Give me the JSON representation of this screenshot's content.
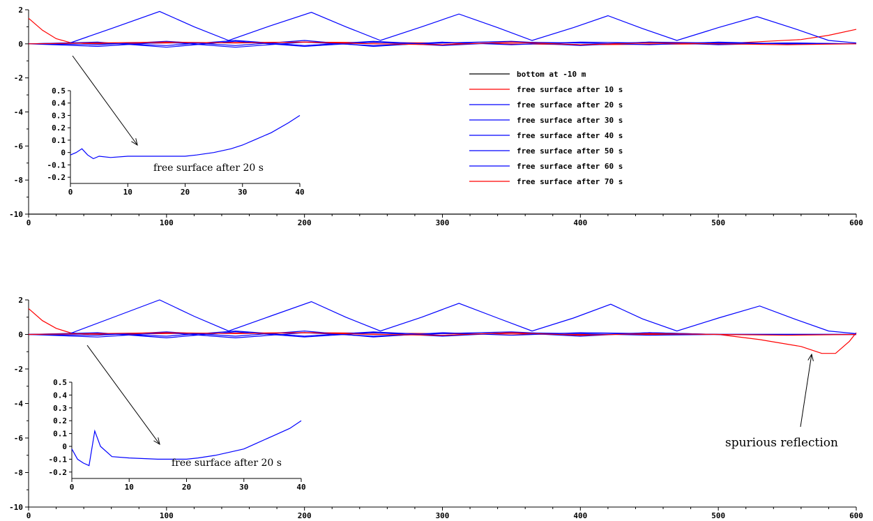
{
  "chart_data": [
    {
      "type": "line",
      "title": "",
      "xlabel": "",
      "ylabel": "",
      "xlim": [
        0,
        600
      ],
      "ylim": [
        -10,
        2
      ],
      "xticks": [
        "0",
        "100",
        "200",
        "300",
        "400",
        "500",
        "600"
      ],
      "yticks": [
        "2",
        "0",
        "-2",
        "-4",
        "-6",
        "-8",
        "-10"
      ],
      "legend_position": "right-middle",
      "series": [
        {
          "name": "bottom at -10 m",
          "color": "#000000",
          "x": [
            0,
            600
          ],
          "y": [
            -10,
            -10
          ]
        },
        {
          "name": "free surface after 10 s",
          "color": "#ff0000",
          "x": [
            0,
            10,
            20,
            30,
            40,
            60,
            100,
            200,
            300,
            400,
            500,
            560,
            580,
            600
          ],
          "y": [
            1.5,
            0.8,
            0.3,
            0.08,
            0.02,
            0.0,
            0.05,
            0.1,
            0.05,
            -0.05,
            0.0,
            0.25,
            0.5,
            0.85
          ]
        },
        {
          "name": "free surface after 20 s",
          "color": "#0000ff",
          "x": [
            0,
            30,
            60,
            95,
            120,
            145,
            175,
            205,
            230,
            255,
            285,
            312,
            340,
            365,
            395,
            420,
            445,
            470,
            500,
            528,
            555,
            580,
            600
          ],
          "y": [
            0,
            0.05,
            0.9,
            1.9,
            1.0,
            0.2,
            1.05,
            1.85,
            1.0,
            0.2,
            1.0,
            1.75,
            0.95,
            0.2,
            0.95,
            1.65,
            0.9,
            0.2,
            0.95,
            1.6,
            0.9,
            0.2,
            0.05
          ]
        },
        {
          "name": "free surface after 30 s",
          "color": "#0000ff",
          "x": [
            0,
            50,
            100,
            150,
            200,
            250,
            300,
            350,
            400,
            450,
            500,
            550,
            600
          ],
          "y": [
            0,
            -0.15,
            0.1,
            -0.2,
            0.1,
            -0.1,
            0.05,
            0.15,
            -0.05,
            0.1,
            -0.05,
            0.05,
            0
          ]
        },
        {
          "name": "free surface after 40 s",
          "color": "#0000ff",
          "x": [
            0,
            50,
            100,
            150,
            200,
            250,
            300,
            350,
            400,
            450,
            500,
            550,
            600
          ],
          "y": [
            0,
            0.1,
            -0.2,
            0.15,
            -0.15,
            0.1,
            -0.1,
            0.1,
            0.05,
            -0.05,
            0.1,
            0,
            0
          ]
        },
        {
          "name": "free surface after 50 s",
          "color": "#0000ff",
          "x": [
            0,
            50,
            100,
            150,
            200,
            250,
            300,
            350,
            400,
            450,
            500,
            550,
            600
          ],
          "y": [
            0,
            -0.05,
            0.15,
            -0.1,
            0.2,
            -0.15,
            0.1,
            -0.05,
            0.1,
            0.05,
            0,
            0.05,
            0
          ]
        },
        {
          "name": "free surface after 60 s",
          "color": "#0000ff",
          "x": [
            0,
            50,
            100,
            150,
            200,
            250,
            300,
            350,
            400,
            450,
            500,
            550,
            600
          ],
          "y": [
            0,
            0.05,
            -0.1,
            0.2,
            -0.1,
            0.15,
            -0.05,
            0.1,
            -0.1,
            0.1,
            0.05,
            0,
            0
          ]
        },
        {
          "name": "free surface after 70 s",
          "color": "#ff0000",
          "x": [
            0,
            50,
            100,
            150,
            200,
            250,
            300,
            350,
            400,
            450,
            500,
            550,
            600
          ],
          "y": [
            0,
            0.05,
            0.1,
            0.05,
            0.1,
            0.0,
            -0.05,
            0.1,
            -0.05,
            0.05,
            0,
            -0.05,
            0
          ]
        }
      ],
      "inset": {
        "type": "line",
        "xlim": [
          0,
          40
        ],
        "ylim": [
          -0.25,
          0.5
        ],
        "xticks": [
          "0",
          "10",
          "20",
          "30",
          "40"
        ],
        "yticks": [
          "0.5",
          "0.4",
          "0.3",
          "0.2",
          "0.1",
          "0",
          "-0.1",
          "-0.2"
        ],
        "annotation": "free surface after 20 s",
        "series": [
          {
            "color": "#0000ff",
            "x": [
              0,
              1,
              2,
              3,
              4,
              5,
              7,
              10,
              15,
              20,
              22,
              25,
              28,
              30,
              32,
              35,
              38,
              40
            ],
            "y": [
              -0.02,
              0.0,
              0.03,
              -0.02,
              -0.05,
              -0.03,
              -0.04,
              -0.03,
              -0.03,
              -0.03,
              -0.02,
              0.0,
              0.03,
              0.06,
              0.1,
              0.16,
              0.24,
              0.3
            ]
          }
        ]
      }
    },
    {
      "type": "line",
      "title": "",
      "xlabel": "",
      "ylabel": "",
      "xlim": [
        0,
        600
      ],
      "ylim": [
        -10,
        2
      ],
      "xticks": [
        "0",
        "100",
        "200",
        "300",
        "400",
        "500",
        "600"
      ],
      "yticks": [
        "2",
        "0",
        "-2",
        "-4",
        "-6",
        "-8",
        "-10"
      ],
      "series": [
        {
          "name": "free surface after 10 s",
          "color": "#ff0000",
          "x": [
            0,
            10,
            20,
            30,
            40,
            60,
            100,
            200,
            300,
            400,
            500,
            530,
            560,
            575,
            585,
            595,
            600
          ],
          "y": [
            1.5,
            0.8,
            0.35,
            0.1,
            0.02,
            0.0,
            0.05,
            0.1,
            0.05,
            0.0,
            0.0,
            -0.3,
            -0.7,
            -1.1,
            -1.1,
            -0.4,
            0.1
          ]
        },
        {
          "name": "free surface after 20 s",
          "color": "#0000ff",
          "x": [
            0,
            30,
            60,
            95,
            120,
            145,
            175,
            205,
            230,
            255,
            285,
            312,
            340,
            365,
            395,
            422,
            445,
            470,
            500,
            530,
            555,
            580,
            600
          ],
          "y": [
            0,
            0.05,
            0.95,
            2.0,
            1.05,
            0.2,
            1.05,
            1.9,
            1.0,
            0.2,
            1.0,
            1.8,
            0.95,
            0.2,
            0.95,
            1.75,
            0.9,
            0.2,
            0.95,
            1.65,
            0.9,
            0.2,
            0.05
          ]
        },
        {
          "name": "free surface after 30 s",
          "color": "#0000ff",
          "x": [
            0,
            50,
            100,
            150,
            200,
            250,
            300,
            350,
            400,
            450,
            500,
            550,
            600
          ],
          "y": [
            0,
            -0.15,
            0.1,
            -0.2,
            0.1,
            -0.1,
            0.05,
            0.15,
            -0.05,
            0.1,
            0,
            0,
            0
          ]
        },
        {
          "name": "free surface after 40 s",
          "color": "#0000ff",
          "x": [
            0,
            50,
            100,
            150,
            200,
            250,
            300,
            350,
            400,
            450,
            500,
            550,
            600
          ],
          "y": [
            0,
            0.1,
            -0.2,
            0.15,
            -0.15,
            0.1,
            -0.1,
            0.1,
            0.05,
            -0.05,
            0,
            0,
            0
          ]
        },
        {
          "name": "free surface after 50 s",
          "color": "#0000ff",
          "x": [
            0,
            50,
            100,
            150,
            200,
            250,
            300,
            350,
            400,
            450,
            500,
            550,
            600
          ],
          "y": [
            0,
            -0.05,
            0.15,
            -0.1,
            0.2,
            -0.15,
            0.1,
            -0.05,
            0.1,
            0.05,
            0,
            0,
            0
          ]
        },
        {
          "name": "free surface after 60 s",
          "color": "#0000ff",
          "x": [
            0,
            50,
            100,
            150,
            200,
            250,
            300,
            350,
            400,
            450,
            500,
            550,
            600
          ],
          "y": [
            0,
            0.05,
            -0.1,
            0.2,
            -0.1,
            0.15,
            -0.05,
            0.1,
            -0.1,
            0.1,
            0,
            0,
            0
          ]
        },
        {
          "name": "free surface after 70 s",
          "color": "#ff0000",
          "x": [
            0,
            50,
            100,
            150,
            200,
            250,
            300,
            350,
            400,
            450,
            500,
            550,
            600
          ],
          "y": [
            0,
            0.05,
            0.1,
            0.05,
            0.1,
            0.0,
            -0.05,
            0.1,
            -0.05,
            0.05,
            0,
            -0.05,
            0
          ]
        }
      ],
      "annotation": "spurious reflection",
      "inset": {
        "type": "line",
        "xlim": [
          0,
          40
        ],
        "ylim": [
          -0.25,
          0.5
        ],
        "xticks": [
          "0",
          "10",
          "20",
          "30",
          "40"
        ],
        "yticks": [
          "0.5",
          "0.4",
          "0.3",
          "0.2",
          "0.1",
          "0",
          "-0.1",
          "-0.2"
        ],
        "annotation": "free surface after 20 s",
        "series": [
          {
            "color": "#0000ff",
            "x": [
              0,
              1,
              2,
              3,
              4,
              5,
              7,
              10,
              15,
              20,
              22,
              25,
              28,
              30,
              32,
              35,
              38,
              40
            ],
            "y": [
              -0.02,
              -0.1,
              -0.13,
              -0.15,
              0.12,
              0.0,
              -0.08,
              -0.09,
              -0.1,
              -0.1,
              -0.09,
              -0.07,
              -0.04,
              -0.02,
              0.02,
              0.08,
              0.14,
              0.2
            ]
          }
        ]
      }
    }
  ]
}
